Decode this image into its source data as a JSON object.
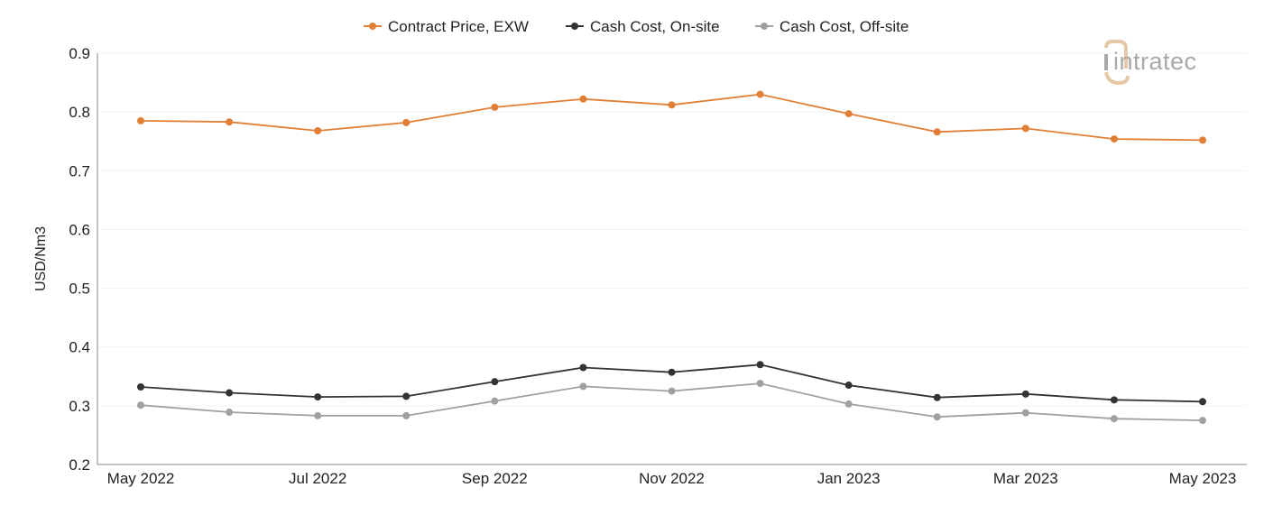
{
  "chart_data": {
    "type": "line",
    "x": [
      "May 2022",
      "Jun 2022",
      "Jul 2022",
      "Aug 2022",
      "Sep 2022",
      "Oct 2022",
      "Nov 2022",
      "Dec 2022",
      "Jan 2023",
      "Feb 2023",
      "Mar 2023",
      "Apr 2023",
      "May 2023"
    ],
    "x_tick_labels": [
      "May 2022",
      "",
      "Jul 2022",
      "",
      "Sep 2022",
      "",
      "Nov 2022",
      "",
      "Jan 2023",
      "",
      "Mar 2023",
      "",
      "May 2023"
    ],
    "series": [
      {
        "name": "Contract Price, EXW",
        "color": "#e07f35",
        "values": [
          0.785,
          0.783,
          0.768,
          0.782,
          0.808,
          0.822,
          0.812,
          0.83,
          0.797,
          0.766,
          0.772,
          0.754,
          0.752
        ]
      },
      {
        "name": "Cash Cost, On-site",
        "color": "#333333",
        "values": [
          0.332,
          0.322,
          0.315,
          0.316,
          0.341,
          0.365,
          0.357,
          0.37,
          0.335,
          0.314,
          0.32,
          0.31,
          0.307
        ]
      },
      {
        "name": "Cash Cost, Off-site",
        "color": "#a0a0a0",
        "values": [
          0.301,
          0.289,
          0.283,
          0.283,
          0.308,
          0.333,
          0.325,
          0.338,
          0.303,
          0.281,
          0.288,
          0.278,
          0.275
        ]
      }
    ],
    "ylabel": "USD/Nm3",
    "ylim": [
      0.2,
      0.9
    ],
    "y_ticks": [
      0.2,
      0.3,
      0.4,
      0.5,
      0.6,
      0.7,
      0.8,
      0.9
    ],
    "legend_position": "top-center",
    "grid": true
  },
  "logo": {
    "text": "intratec",
    "icon": "intratec-logo-icon",
    "accent": "#e6c9a8"
  }
}
